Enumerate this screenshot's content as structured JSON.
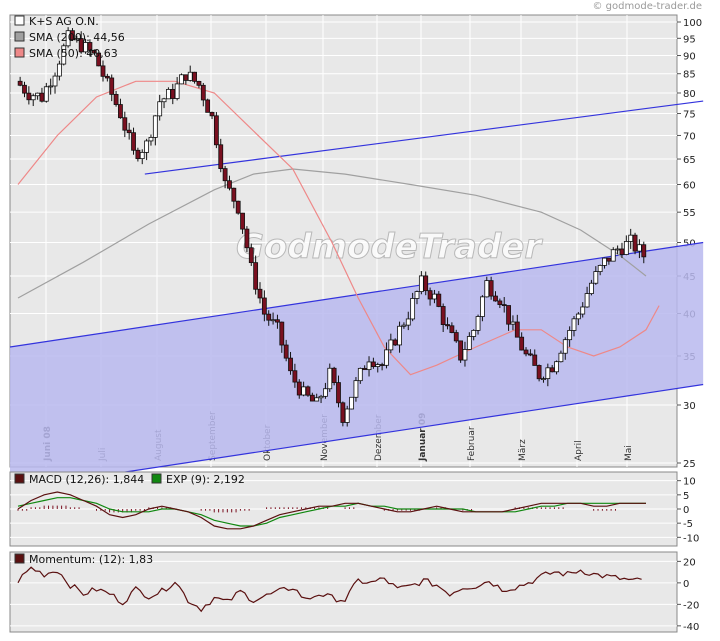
{
  "credit": "© godmode-trader.de",
  "watermark": "GodmodeTrader",
  "colors": {
    "panel_bg": "#e8e8e8",
    "candle_up": "#ffffff",
    "candle_down": "#7a1020",
    "channel_line": "#3333dd",
    "channel_fill": "#b9b9ef",
    "sma200": "#a0a0a0",
    "sma50": "#ee8888",
    "macd": "#5a1010",
    "signal": "#118811",
    "momentum": "#5a1010"
  },
  "chart_data": [
    {
      "type": "candlestick",
      "title": "K+S AG O.N.",
      "y_scale": "log",
      "ylim": [
        25,
        100
      ],
      "y_ticks": [
        25,
        30,
        35,
        40,
        45,
        50,
        55,
        60,
        65,
        70,
        75,
        80,
        85,
        90,
        95,
        100
      ],
      "x_months": [
        "Juni 08",
        "Juli",
        "August",
        "September",
        "Oktober",
        "November",
        "Dezember",
        "Januar 09",
        "Februar",
        "März",
        "April",
        "Mai"
      ],
      "bold_months": [
        "Juni 08",
        "Januar 09"
      ],
      "legend": [
        {
          "label": "K+S AG O.N.",
          "color": "#ffffff"
        },
        {
          "label": "SMA (200): 44,56",
          "color": "#a0a0a0"
        },
        {
          "label": "SMA (50): 40,63",
          "color": "#ee8888"
        }
      ],
      "closes_weekly": [
        83,
        80,
        79,
        86,
        95,
        93,
        90,
        82,
        75,
        66,
        68,
        78,
        80,
        85,
        82,
        74,
        60,
        56,
        46,
        40,
        38,
        33,
        31,
        30,
        33,
        29,
        32,
        35,
        34,
        37,
        40,
        44,
        42,
        38,
        35,
        38,
        44,
        42,
        38,
        35,
        33,
        34,
        37,
        40,
        44,
        47,
        49,
        50,
        48
      ],
      "sma200": [
        {
          "week": 0,
          "value": 42
        },
        {
          "week": 5,
          "value": 47
        },
        {
          "week": 10,
          "value": 53
        },
        {
          "week": 15,
          "value": 59
        },
        {
          "week": 18,
          "value": 62
        },
        {
          "week": 21,
          "value": 63
        },
        {
          "week": 25,
          "value": 62
        },
        {
          "week": 30,
          "value": 60
        },
        {
          "week": 35,
          "value": 58
        },
        {
          "week": 40,
          "value": 55
        },
        {
          "week": 43,
          "value": 52
        },
        {
          "week": 46,
          "value": 48
        },
        {
          "week": 48,
          "value": 45
        }
      ],
      "sma50": [
        {
          "week": 0,
          "value": 60
        },
        {
          "week": 3,
          "value": 70
        },
        {
          "week": 6,
          "value": 79
        },
        {
          "week": 9,
          "value": 83
        },
        {
          "week": 12,
          "value": 83
        },
        {
          "week": 15,
          "value": 80
        },
        {
          "week": 18,
          "value": 71
        },
        {
          "week": 21,
          "value": 63
        },
        {
          "week": 24,
          "value": 50
        },
        {
          "week": 26,
          "value": 42
        },
        {
          "week": 28,
          "value": 36
        },
        {
          "week": 30,
          "value": 33
        },
        {
          "week": 32,
          "value": 34
        },
        {
          "week": 35,
          "value": 36
        },
        {
          "week": 38,
          "value": 38
        },
        {
          "week": 40,
          "value": 38
        },
        {
          "week": 42,
          "value": 36
        },
        {
          "week": 44,
          "value": 35
        },
        {
          "week": 46,
          "value": 36
        },
        {
          "week": 48,
          "value": 38
        },
        {
          "week": 49,
          "value": 41
        }
      ],
      "channel": {
        "lower": [
          {
            "week": 0,
            "value": 36
          },
          {
            "week": 50,
            "value": 50
          }
        ],
        "lower_bottom": [
          {
            "week": 0,
            "value": 23
          },
          {
            "week": 50,
            "value": 32
          }
        ],
        "upper": [
          {
            "week": 10,
            "value": 62
          },
          {
            "week": 50,
            "value": 78
          }
        ]
      }
    },
    {
      "type": "line",
      "title": "MACD",
      "legend": [
        {
          "label": "MACD (12,26): 1,844",
          "color": "#5a1010"
        },
        {
          "label": "EXP (9): 2,192",
          "color": "#118811"
        }
      ],
      "ylim": [
        -12,
        12
      ],
      "y_ticks": [
        10,
        5,
        0,
        -5,
        -10
      ],
      "macd_weekly": [
        0,
        3,
        5,
        6,
        5,
        3,
        1,
        -2,
        -3,
        -2,
        0,
        1,
        0,
        -1,
        -3,
        -6,
        -7,
        -7,
        -6,
        -4,
        -2,
        -1,
        0,
        1,
        1,
        2,
        2,
        1,
        0,
        -1,
        -1,
        0,
        1,
        0,
        -1,
        -1,
        -1,
        -1,
        0,
        1,
        2,
        2,
        2,
        2,
        1,
        1,
        2,
        2,
        2
      ],
      "signal_weekly": [
        1,
        2,
        3,
        4,
        4,
        3,
        2,
        0,
        -1,
        -1,
        -1,
        0,
        0,
        -1,
        -2,
        -4,
        -5,
        -6,
        -6,
        -5,
        -3,
        -2,
        -1,
        0,
        1,
        1,
        2,
        1,
        1,
        0,
        0,
        0,
        0,
        0,
        0,
        -1,
        -1,
        -1,
        -1,
        0,
        1,
        1,
        2,
        2,
        2,
        2,
        2,
        2,
        2
      ]
    },
    {
      "type": "line",
      "title": "Momentum",
      "legend": [
        {
          "label": "Momentum: (12): 1,83",
          "color": "#5a1010"
        }
      ],
      "ylim": [
        -42,
        25
      ],
      "y_ticks": [
        20,
        0,
        -20,
        -40
      ],
      "momentum_weekly": [
        2,
        14,
        8,
        12,
        -2,
        -10,
        -6,
        -10,
        -18,
        -6,
        -12,
        -8,
        2,
        -16,
        -24,
        -14,
        -18,
        -8,
        -16,
        -12,
        -8,
        -4,
        -16,
        -10,
        -14,
        -16,
        2,
        0,
        4,
        -6,
        -3,
        2,
        -2,
        -10,
        -4,
        -3,
        2,
        -6,
        -4,
        0,
        6,
        10,
        8,
        12,
        8,
        6,
        4,
        2,
        2
      ]
    }
  ]
}
